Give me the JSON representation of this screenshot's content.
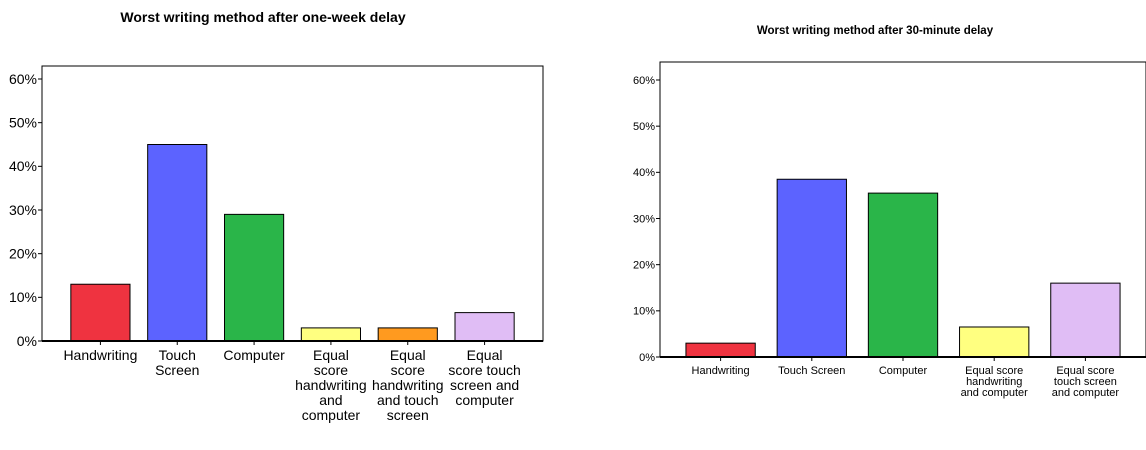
{
  "chart_data": [
    {
      "type": "bar",
      "title": "Worst writing method after one-week delay",
      "categories": [
        [
          "Handwriting"
        ],
        [
          "Touch",
          "Screen"
        ],
        [
          "Computer"
        ],
        [
          "Equal",
          "score",
          "handwriting",
          "and",
          "computer"
        ],
        [
          "Equal",
          "score",
          "handwriting",
          "and touch",
          "screen"
        ],
        [
          "Equal",
          "score touch",
          "screen and",
          "computer"
        ]
      ],
      "values": [
        13,
        45,
        29,
        3,
        3,
        6.5
      ],
      "colors": [
        "#ef3340",
        "#5c63ff",
        "#2ab549",
        "#ffff80",
        "#ff9a1f",
        "#e0bdf5"
      ],
      "y_ticks": [
        "0%",
        "10%",
        "20%",
        "30%",
        "40%",
        "50%",
        "60%"
      ],
      "ylim": [
        0,
        60
      ],
      "grid": false,
      "legend": "none"
    },
    {
      "type": "bar",
      "title": "Worst writing method after 30-minute delay",
      "categories": [
        [
          "Handwriting"
        ],
        [
          "Touch Screen"
        ],
        [
          "Computer"
        ],
        [
          "Equal score",
          "handwriting",
          "and computer"
        ],
        [
          "Equal score",
          "touch screen",
          "and computer"
        ]
      ],
      "values": [
        3,
        38.5,
        35.5,
        6.5,
        16
      ],
      "colors": [
        "#ef3340",
        "#5c63ff",
        "#2ab549",
        "#ffff80",
        "#e0bdf5"
      ],
      "y_ticks": [
        "0%",
        "10%",
        "20%",
        "30%",
        "40%",
        "50%",
        "60%"
      ],
      "ylim": [
        0,
        60
      ],
      "grid": false,
      "legend": "none"
    }
  ]
}
